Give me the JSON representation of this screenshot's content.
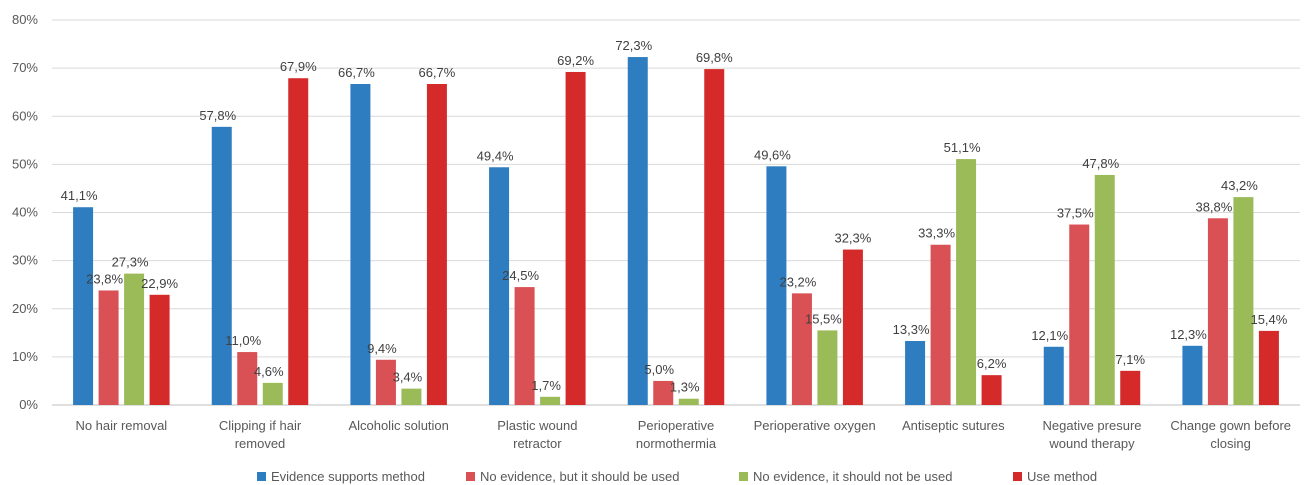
{
  "chart_data": {
    "type": "bar",
    "title": "",
    "xlabel": "",
    "ylabel": "",
    "ylim": [
      0,
      80
    ],
    "yticks": [
      "0%",
      "10%",
      "20%",
      "30%",
      "40%",
      "50%",
      "60%",
      "70%",
      "80%"
    ],
    "grid": "horizontal",
    "legend_position": "bottom",
    "categories": [
      [
        "No hair removal"
      ],
      [
        "Clipping if hair",
        "removed"
      ],
      [
        "Alcoholic solution"
      ],
      [
        "Plastic wound",
        "retractor"
      ],
      [
        "Perioperative",
        "normothermia"
      ],
      [
        "Perioperative oxygen"
      ],
      [
        "Antiseptic sutures"
      ],
      [
        "Negative presure",
        "wound therapy"
      ],
      [
        "Change gown before",
        "closing"
      ]
    ],
    "series": [
      {
        "name": "Evidence supports method",
        "color": "#2e7dc1",
        "values": [
          41.1,
          57.8,
          66.7,
          49.4,
          72.3,
          49.6,
          13.3,
          12.1,
          12.3
        ],
        "labels": [
          "41,1%",
          "57,8%",
          "66,7%",
          "49,4%",
          "72,3%",
          "49,6%",
          "13,3%",
          "12,1%",
          "12,3%"
        ]
      },
      {
        "name": "No evidence, but it should be used",
        "color": "#d95055",
        "values": [
          23.8,
          11.0,
          9.4,
          24.5,
          5.0,
          23.2,
          33.3,
          37.5,
          38.8
        ],
        "labels": [
          "23,8%",
          "11,0%",
          "9,4%",
          "24,5%",
          "5,0%",
          "23,2%",
          "33,3%",
          "37,5%",
          "38,8%"
        ]
      },
      {
        "name": "No evidence, it should not be used",
        "color": "#9bbb59",
        "values": [
          27.3,
          4.6,
          3.4,
          1.7,
          1.3,
          15.5,
          51.1,
          47.8,
          43.2
        ],
        "labels": [
          "27,3%",
          "4,6%",
          "3,4%",
          "1,7%",
          "1,3%",
          "15,5%",
          "51,1%",
          "47,8%",
          "43,2%"
        ]
      },
      {
        "name": "Use method",
        "color": "#d42a2a",
        "values": [
          22.9,
          67.9,
          66.7,
          69.2,
          69.8,
          32.3,
          6.2,
          7.1,
          15.4
        ],
        "labels": [
          "22,9%",
          "67,9%",
          "66,7%",
          "69,2%",
          "69,8%",
          "32,3%",
          "6,2%",
          "7,1%",
          "15,4%"
        ]
      }
    ]
  }
}
